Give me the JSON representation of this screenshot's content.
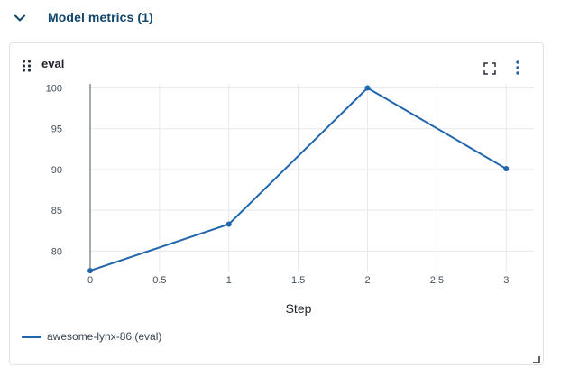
{
  "section": {
    "title": "Model metrics (1)",
    "icon": "chevron-down-icon"
  },
  "panel": {
    "title": "eval",
    "icons": {
      "drag": "drag-handle-icon",
      "expand": "expand-icon",
      "menu": "more-vertical-icon"
    }
  },
  "colors": {
    "accent": "#11456b",
    "series": "#2166ac",
    "grid": "#e6e9ed"
  },
  "chart_data": {
    "type": "line",
    "xlabel": "Step",
    "ylabel": "",
    "xlim": [
      0,
      3.2
    ],
    "ylim": [
      77.5,
      100.5
    ],
    "xticks": [
      "0",
      "0.5",
      "1",
      "1.5",
      "2",
      "2.5",
      "3"
    ],
    "yticks": [
      "80",
      "85",
      "90",
      "95",
      "100"
    ],
    "grid": true,
    "legend_position": "bottom-left",
    "series": [
      {
        "name": "awesome-lynx-86 (eval)",
        "x": [
          0,
          1,
          2,
          3
        ],
        "y": [
          77.6,
          83.3,
          100,
          90.1
        ]
      }
    ]
  },
  "legend": {
    "label": "awesome-lynx-86 (eval)"
  }
}
